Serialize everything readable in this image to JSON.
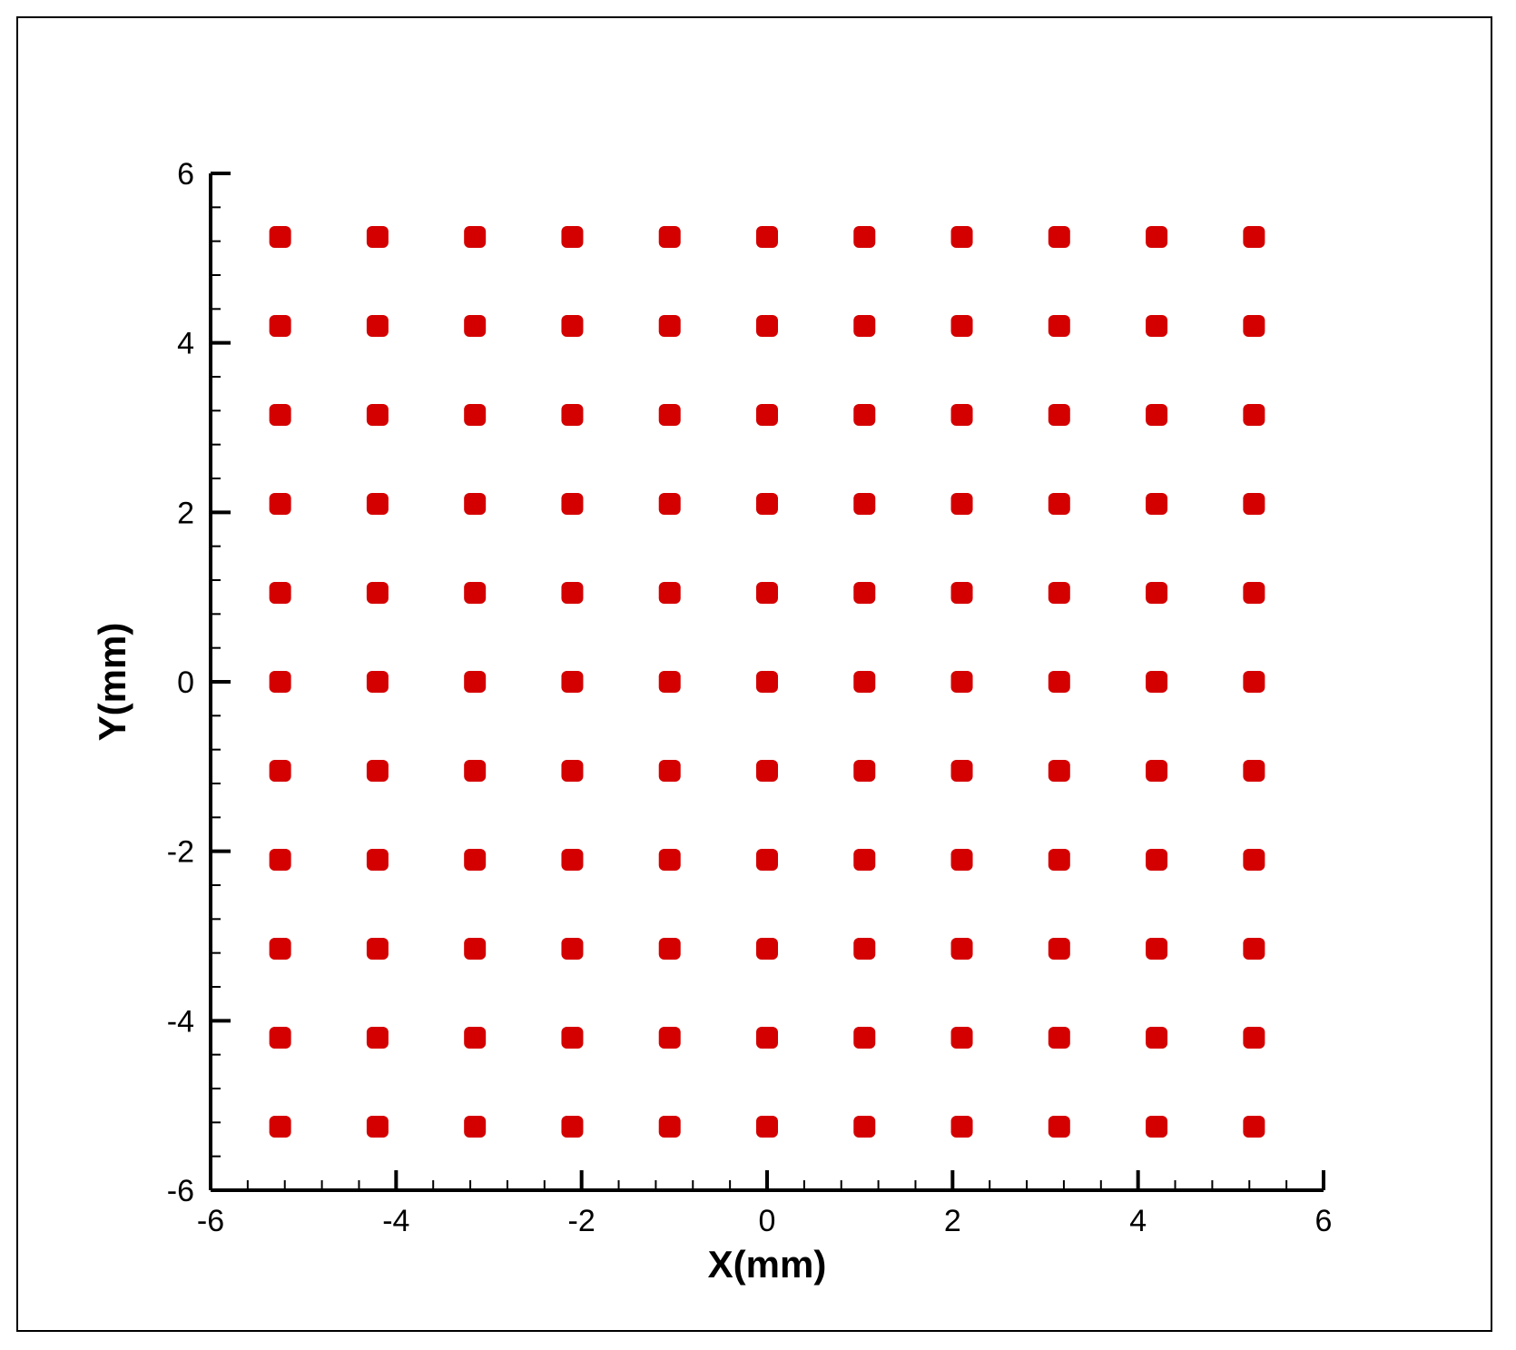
{
  "chart_data": {
    "type": "scatter",
    "title": "",
    "xlabel": "X(mm)",
    "ylabel": "Y(mm)",
    "xlim": [
      -6,
      6
    ],
    "ylim": [
      -6,
      6
    ],
    "x_ticks": [
      -6,
      -4,
      -2,
      0,
      2,
      4,
      6
    ],
    "y_ticks": [
      -6,
      -4,
      -2,
      0,
      2,
      4,
      6
    ],
    "x_tick_labels": [
      "-6",
      "-4",
      "-2",
      "0",
      "2",
      "4",
      "6"
    ],
    "y_tick_labels": [
      "-6",
      "-4",
      "-2",
      "0",
      "2",
      "4",
      "6"
    ],
    "minor_ticks_per_major": 4,
    "grid": false,
    "marker_color": "#d40000",
    "marker_shape": "rounded-square",
    "grid_points": {
      "x": [
        -5.25,
        -4.2,
        -3.15,
        -2.1,
        -1.05,
        0,
        1.05,
        2.1,
        3.15,
        4.2,
        5.25
      ],
      "y": [
        5.25,
        4.2,
        3.15,
        2.1,
        1.05,
        0,
        -1.05,
        -2.1,
        -3.15,
        -4.2,
        -5.25
      ]
    }
  }
}
